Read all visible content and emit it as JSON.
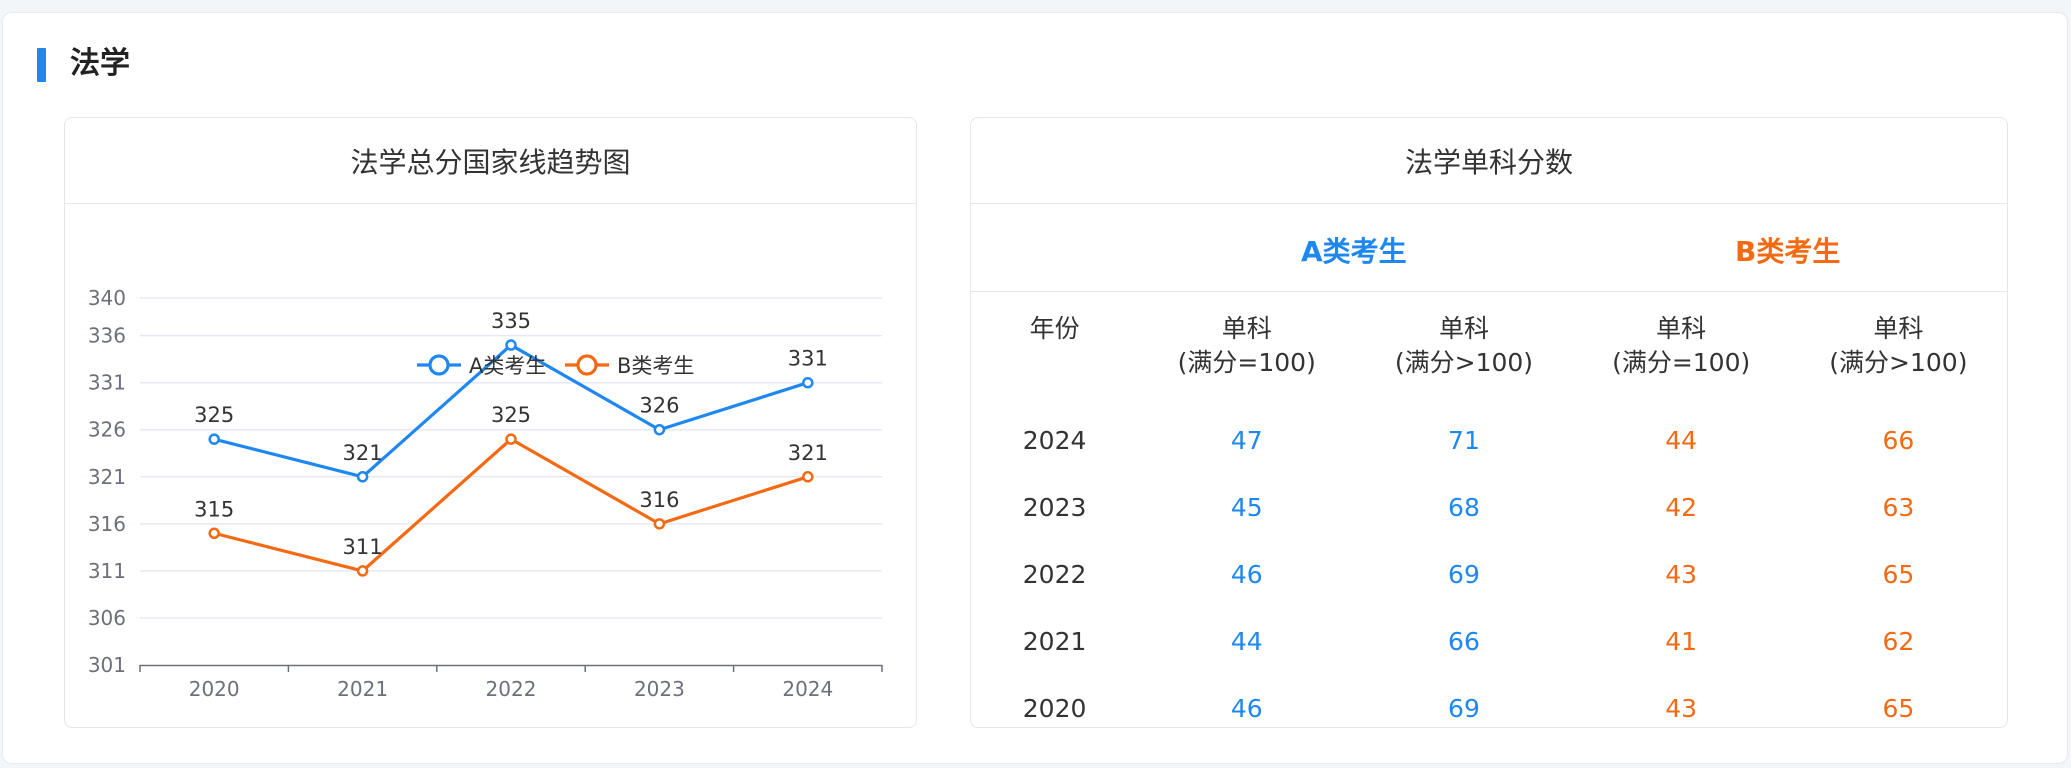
{
  "section": {
    "title": "法学"
  },
  "colors": {
    "a": "#1e88f0",
    "b": "#f36a13",
    "grid": "#e6e9f5",
    "axis": "#6e7079"
  },
  "chart_card": {
    "title": "法学总分国家线趋势图"
  },
  "chart_data": {
    "type": "line",
    "title": "法学总分国家线趋势图",
    "categories": [
      "2020",
      "2021",
      "2022",
      "2023",
      "2024"
    ],
    "y_ticks": [
      "301",
      "306",
      "311",
      "316",
      "321",
      "326",
      "331",
      "336",
      "340"
    ],
    "ylim": [
      301,
      340
    ],
    "legend_position": "top",
    "series": [
      {
        "name": "A类考生",
        "values": [
          325,
          321,
          335,
          326,
          331
        ]
      },
      {
        "name": "B类考生",
        "values": [
          315,
          311,
          325,
          316,
          321
        ]
      }
    ]
  },
  "table_card": {
    "title": "法学单科分数",
    "type_a": "A类考生",
    "type_b": "B类考生",
    "headers": [
      "年份",
      "单科\n(满分=100)",
      "单科\n(满分>100)",
      "单科\n(满分=100)",
      "单科\n(满分>100)"
    ],
    "rows": [
      {
        "year": "2024",
        "a100": "47",
        "a_gt100": "71",
        "b100": "44",
        "b_gt100": "66"
      },
      {
        "year": "2023",
        "a100": "45",
        "a_gt100": "68",
        "b100": "42",
        "b_gt100": "63"
      },
      {
        "year": "2022",
        "a100": "46",
        "a_gt100": "69",
        "b100": "43",
        "b_gt100": "65"
      },
      {
        "year": "2021",
        "a100": "44",
        "a_gt100": "66",
        "b100": "41",
        "b_gt100": "62"
      },
      {
        "year": "2020",
        "a100": "46",
        "a_gt100": "69",
        "b100": "43",
        "b_gt100": "65"
      }
    ]
  }
}
